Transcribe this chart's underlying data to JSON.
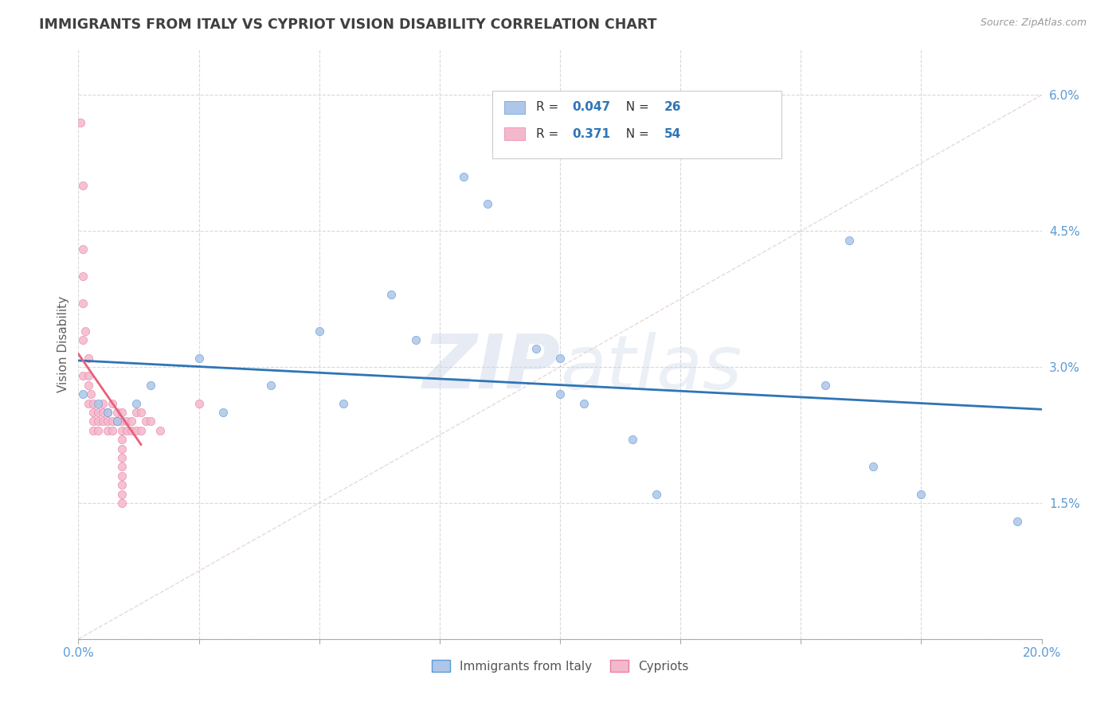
{
  "title": "IMMIGRANTS FROM ITALY VS CYPRIOT VISION DISABILITY CORRELATION CHART",
  "source": "Source: ZipAtlas.com",
  "xlabel_legend_left": "Immigrants from Italy",
  "xlabel_legend_right": "Cypriots",
  "ylabel": "Vision Disability",
  "xlim": [
    0.0,
    0.2
  ],
  "ylim": [
    0.0,
    0.065
  ],
  "xticks": [
    0.0,
    0.025,
    0.05,
    0.075,
    0.1,
    0.125,
    0.15,
    0.175,
    0.2
  ],
  "xtick_labels_show": [
    "0.0%",
    "",
    "",
    "",
    "",
    "",
    "",
    "",
    "20.0%"
  ],
  "yticks_right": [
    0.015,
    0.03,
    0.045,
    0.06
  ],
  "ytick_labels_right": [
    "1.5%",
    "3.0%",
    "4.5%",
    "6.0%"
  ],
  "blue_R": 0.047,
  "blue_N": 26,
  "pink_R": 0.371,
  "pink_N": 54,
  "blue_color": "#aec6e8",
  "pink_color": "#f4b8cb",
  "blue_edge_color": "#5b9bd5",
  "pink_edge_color": "#e87fa8",
  "blue_line_color": "#2e75b6",
  "pink_line_color": "#e8607a",
  "diag_color": "#dddddd",
  "blue_scatter": [
    [
      0.001,
      0.027
    ],
    [
      0.004,
      0.026
    ],
    [
      0.006,
      0.025
    ],
    [
      0.008,
      0.024
    ],
    [
      0.012,
      0.026
    ],
    [
      0.015,
      0.028
    ],
    [
      0.025,
      0.031
    ],
    [
      0.03,
      0.025
    ],
    [
      0.04,
      0.028
    ],
    [
      0.05,
      0.034
    ],
    [
      0.055,
      0.026
    ],
    [
      0.065,
      0.038
    ],
    [
      0.07,
      0.033
    ],
    [
      0.08,
      0.051
    ],
    [
      0.085,
      0.048
    ],
    [
      0.095,
      0.032
    ],
    [
      0.1,
      0.031
    ],
    [
      0.1,
      0.027
    ],
    [
      0.105,
      0.026
    ],
    [
      0.115,
      0.022
    ],
    [
      0.12,
      0.016
    ],
    [
      0.155,
      0.028
    ],
    [
      0.16,
      0.044
    ],
    [
      0.165,
      0.019
    ],
    [
      0.175,
      0.016
    ],
    [
      0.195,
      0.013
    ]
  ],
  "pink_scatter": [
    [
      0.0005,
      0.057
    ],
    [
      0.001,
      0.05
    ],
    [
      0.001,
      0.043
    ],
    [
      0.001,
      0.04
    ],
    [
      0.001,
      0.037
    ],
    [
      0.0015,
      0.034
    ],
    [
      0.001,
      0.033
    ],
    [
      0.002,
      0.031
    ],
    [
      0.001,
      0.029
    ],
    [
      0.002,
      0.029
    ],
    [
      0.002,
      0.028
    ],
    [
      0.0025,
      0.027
    ],
    [
      0.002,
      0.026
    ],
    [
      0.003,
      0.026
    ],
    [
      0.003,
      0.025
    ],
    [
      0.003,
      0.024
    ],
    [
      0.003,
      0.023
    ],
    [
      0.004,
      0.025
    ],
    [
      0.004,
      0.024
    ],
    [
      0.004,
      0.023
    ],
    [
      0.005,
      0.026
    ],
    [
      0.005,
      0.025
    ],
    [
      0.005,
      0.024
    ],
    [
      0.006,
      0.025
    ],
    [
      0.006,
      0.024
    ],
    [
      0.006,
      0.023
    ],
    [
      0.007,
      0.026
    ],
    [
      0.007,
      0.024
    ],
    [
      0.007,
      0.023
    ],
    [
      0.008,
      0.025
    ],
    [
      0.008,
      0.024
    ],
    [
      0.009,
      0.025
    ],
    [
      0.009,
      0.024
    ],
    [
      0.009,
      0.023
    ],
    [
      0.009,
      0.022
    ],
    [
      0.009,
      0.021
    ],
    [
      0.009,
      0.02
    ],
    [
      0.009,
      0.019
    ],
    [
      0.009,
      0.018
    ],
    [
      0.009,
      0.017
    ],
    [
      0.009,
      0.016
    ],
    [
      0.009,
      0.015
    ],
    [
      0.01,
      0.024
    ],
    [
      0.01,
      0.023
    ],
    [
      0.011,
      0.024
    ],
    [
      0.011,
      0.023
    ],
    [
      0.012,
      0.025
    ],
    [
      0.012,
      0.023
    ],
    [
      0.013,
      0.025
    ],
    [
      0.013,
      0.023
    ],
    [
      0.014,
      0.024
    ],
    [
      0.015,
      0.024
    ],
    [
      0.017,
      0.023
    ],
    [
      0.025,
      0.026
    ]
  ],
  "watermark_line1": "ZIP",
  "watermark_line2": "atlas",
  "grid_color": "#d9d9d9",
  "title_color": "#404040",
  "axis_label_color": "#606060",
  "tick_label_color": "#5b9bd5",
  "legend_bg": "#ffffff",
  "legend_border": "#cccccc"
}
